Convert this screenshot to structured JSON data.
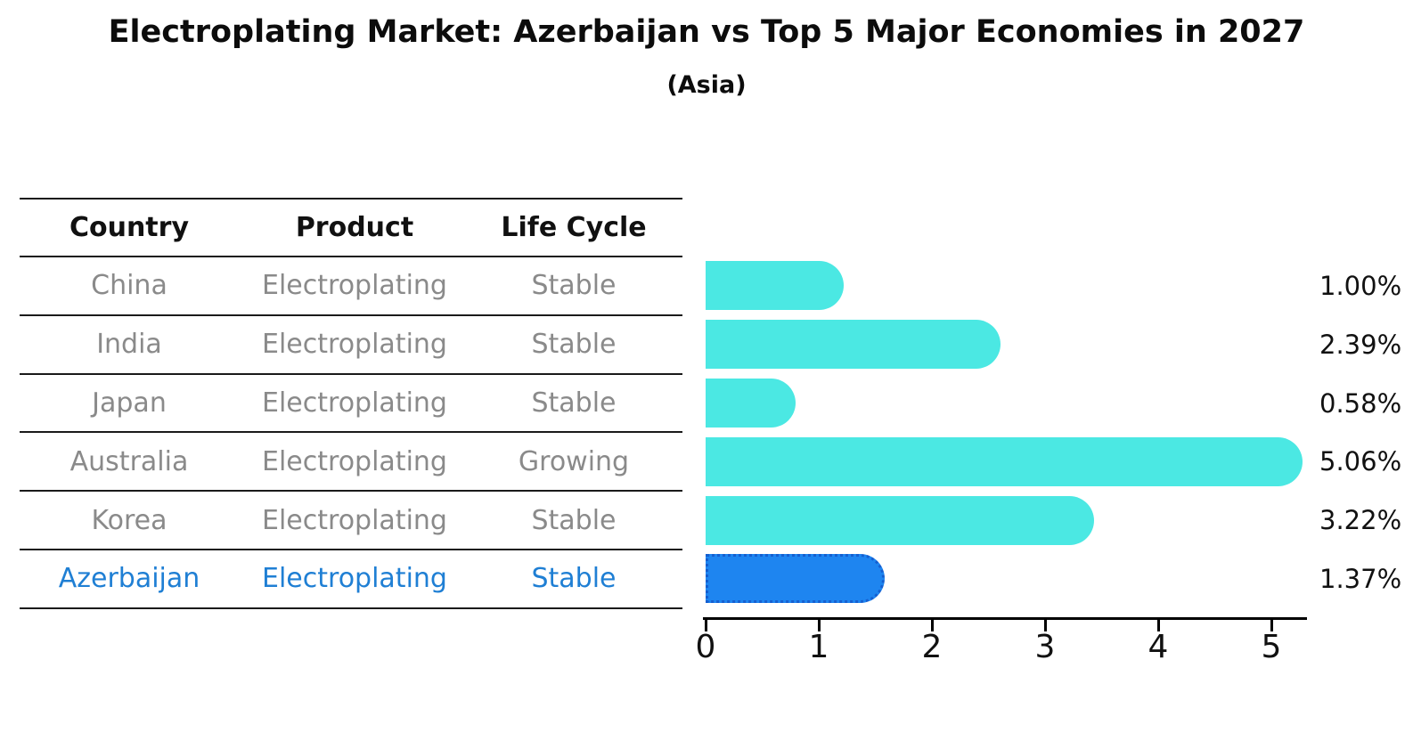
{
  "title": "Electroplating Market: Azerbaijan vs Top 5 Major Economies in 2027",
  "subtitle": "(Asia)",
  "table": {
    "headers": [
      "Country",
      "Product",
      "Life Cycle"
    ],
    "rows": [
      {
        "country": "China",
        "product": "Electroplating",
        "life_cycle": "Stable",
        "highlight": false
      },
      {
        "country": "India",
        "product": "Electroplating",
        "life_cycle": "Stable",
        "highlight": false
      },
      {
        "country": "Japan",
        "product": "Electroplating",
        "life_cycle": "Stable",
        "highlight": false
      },
      {
        "country": "Australia",
        "product": "Electroplating",
        "life_cycle": "Growing",
        "highlight": false
      },
      {
        "country": "Korea",
        "product": "Electroplating",
        "life_cycle": "Stable",
        "highlight": false
      },
      {
        "country": "Azerbaijan",
        "product": "Electroplating",
        "life_cycle": "Stable",
        "highlight": true
      }
    ]
  },
  "chart_data": {
    "type": "bar",
    "orientation": "horizontal",
    "title": "Electroplating Market: Azerbaijan vs Top 5 Major Economies in 2027 (Asia)",
    "categories": [
      "China",
      "India",
      "Japan",
      "Australia",
      "Korea",
      "Azerbaijan"
    ],
    "values": [
      1.0,
      2.39,
      0.58,
      5.06,
      3.22,
      1.37
    ],
    "value_labels": [
      "1.00%",
      "2.39%",
      "0.58%",
      "5.06%",
      "3.22%",
      "1.37%"
    ],
    "x_ticks": [
      0,
      1,
      2,
      3,
      4,
      5
    ],
    "x_tick_labels": [
      "0",
      "1",
      "2",
      "3",
      "4",
      "5"
    ],
    "xlim": [
      0,
      5.3
    ],
    "grid": false,
    "legend": false,
    "bar_color": "#4BE8E3",
    "highlight_bar_color": "#1E85F0",
    "highlight_bar_edge_color": "#155FD0",
    "highlight_index": 5
  },
  "colors": {
    "background": "#FFFFFF",
    "title_text": "#0C0C0C",
    "header_text": "#111111",
    "row_text": "#8A8A8A",
    "highlight_text": "#1F7FD4",
    "rule": "#1A1A1A",
    "axis": "#000000"
  }
}
